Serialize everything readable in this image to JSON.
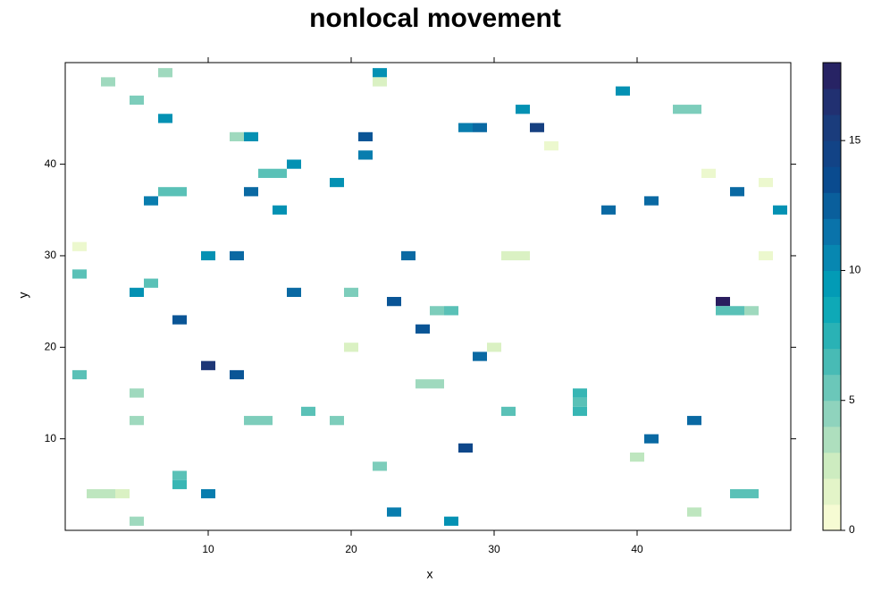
{
  "chart_data": {
    "type": "heatmap",
    "title": "nonlocal movement",
    "x_label": "x",
    "y_label": "y",
    "xlim": [
      0,
      50.75
    ],
    "ylim": [
      0,
      51.1
    ],
    "xticks": [
      10,
      20,
      30,
      40
    ],
    "yticks": [
      10,
      20,
      30,
      40
    ],
    "zlim": [
      0,
      18
    ],
    "zticks": [
      0,
      5,
      10,
      15
    ],
    "colors": [
      "#ffffd9",
      "#d5efc0",
      "#8fd3bd",
      "#3fb8b4",
      "#00a5b8",
      "#0a78ad",
      "#0a4b8f",
      "#1c3a7a",
      "#2a1d5e"
    ],
    "x": [
      22,
      21,
      21,
      33,
      28,
      29,
      46,
      10,
      12,
      28,
      23,
      8,
      24,
      38,
      47,
      13,
      25,
      29,
      44,
      41,
      16,
      12,
      41,
      6,
      32,
      7,
      39,
      10,
      23,
      27,
      50,
      13,
      19,
      16,
      5,
      10,
      15,
      1,
      1,
      2,
      3,
      4,
      5,
      5,
      5,
      6,
      7,
      8,
      8,
      8,
      14,
      15,
      13,
      14,
      17,
      19,
      20,
      22,
      25,
      26,
      26,
      27,
      31,
      36,
      36,
      36,
      43,
      44,
      46,
      47,
      48,
      47,
      48,
      44,
      5,
      3,
      7,
      31,
      32,
      30,
      40,
      45,
      49,
      49,
      1,
      22,
      34,
      20,
      12
    ],
    "y": [
      50,
      43,
      41,
      44,
      44,
      44,
      25,
      18,
      17,
      9,
      25,
      23,
      30,
      35,
      37,
      37,
      22,
      19,
      12,
      10,
      26,
      30,
      36,
      36,
      46,
      45,
      48,
      4,
      2,
      1,
      35,
      43,
      38,
      40,
      26,
      30,
      35,
      28,
      17,
      4,
      4,
      4,
      47,
      15,
      12,
      27,
      37,
      37,
      6,
      5,
      39,
      39,
      12,
      12,
      13,
      12,
      26,
      7,
      16,
      16,
      24,
      24,
      13,
      15,
      14,
      13,
      46,
      46,
      24,
      24,
      24,
      4,
      4,
      2,
      1,
      49,
      50,
      30,
      30,
      20,
      8,
      39,
      38,
      30,
      31,
      49,
      42,
      20,
      43
    ],
    "values": [
      10,
      13,
      11,
      15,
      11,
      12,
      18,
      16,
      13,
      14,
      13,
      13,
      12,
      12,
      12,
      12,
      13,
      12,
      12,
      12,
      12,
      12,
      12,
      11,
      10,
      10,
      10,
      11,
      11,
      10,
      10,
      10,
      10,
      10,
      10,
      10,
      10,
      6,
      6,
      3,
      3,
      2,
      5,
      4,
      4,
      6,
      6,
      6,
      6,
      7,
      6,
      6,
      5,
      5,
      6,
      5,
      5,
      5,
      4,
      4,
      5,
      6,
      6,
      7,
      6,
      7,
      5,
      5,
      6,
      6,
      4,
      6,
      6,
      3,
      4,
      4,
      4,
      2,
      2,
      2,
      3,
      1,
      1,
      1,
      1,
      2,
      1,
      2,
      4
    ]
  }
}
